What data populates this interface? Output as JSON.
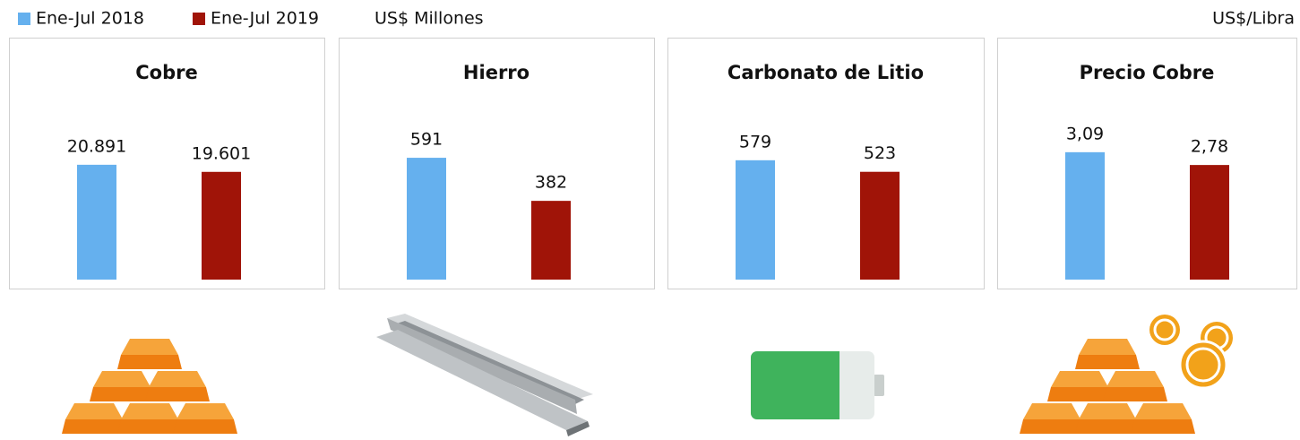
{
  "legend": {
    "items": [
      {
        "name": "Ene-Jul 2018",
        "color": "#65b0ee"
      },
      {
        "name": "Ene-Jul 2019",
        "color": "#a01408"
      }
    ]
  },
  "units": [
    "US$ Millones",
    "US$/Libra"
  ],
  "chart_data": [
    {
      "type": "bar",
      "title": "Cobre",
      "values": [
        20891,
        19601
      ],
      "value_labels": [
        "20.891",
        "19.601"
      ],
      "ylim": [
        0,
        37500
      ]
    },
    {
      "type": "bar",
      "title": "Hierro",
      "values": [
        591,
        382
      ],
      "ylim": [
        0,
        1000
      ]
    },
    {
      "type": "bar",
      "title": "Carbonato de Litio",
      "values": [
        579,
        523
      ],
      "ylim": [
        0,
        1000
      ]
    },
    {
      "type": "bar",
      "title": "Precio Cobre",
      "values": [
        3.09,
        2.78
      ],
      "value_labels": [
        "3,09",
        "2,78"
      ],
      "ylim": [
        0,
        5
      ]
    }
  ]
}
